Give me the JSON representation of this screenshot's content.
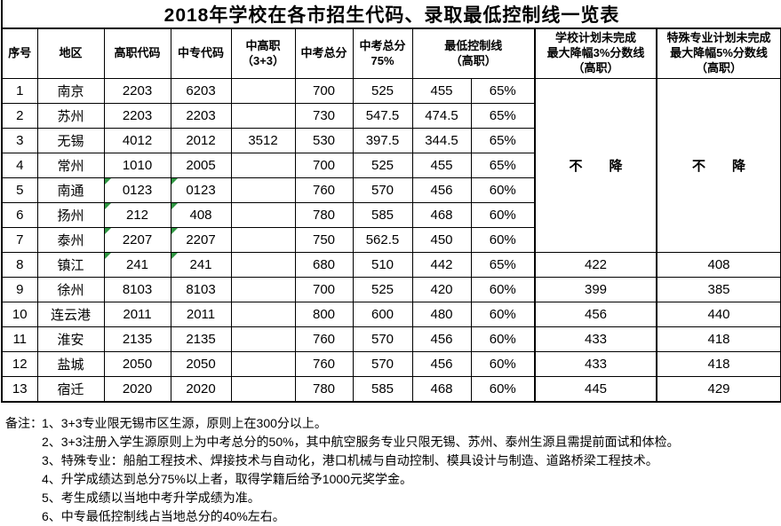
{
  "title": "2018年学校在各市招生代码、录取最低控制线一览表",
  "table": {
    "headers": {
      "no": "序号",
      "region": "地区",
      "gz_code": "高职代码",
      "zz_code": "中专代码",
      "zgz": "中高职\n（3+3）",
      "zk_total": "中考总分",
      "zk_75": "中考总分\n75%",
      "min_line": "最低控制线\n（高职）",
      "school_plan": "学校计划未完成\n最大降幅3%分数线\n（高职）",
      "special_plan": "特殊专业计划未完成\n最大降幅5%分数线\n（高职）"
    },
    "no_drop": "不　　降",
    "rows": [
      {
        "no": "1",
        "region": "南京",
        "gz": "2203",
        "zz": "6203",
        "zgz": "",
        "total": "700",
        "p75": "525",
        "min": "455",
        "pct": "65%",
        "flag": false
      },
      {
        "no": "2",
        "region": "苏州",
        "gz": "2203",
        "zz": "2203",
        "zgz": "",
        "total": "730",
        "p75": "547.5",
        "min": "474.5",
        "pct": "65%",
        "flag": false
      },
      {
        "no": "3",
        "region": "无锡",
        "gz": "4012",
        "zz": "2012",
        "zgz": "3512",
        "total": "530",
        "p75": "397.5",
        "min": "344.5",
        "pct": "65%",
        "flag": false
      },
      {
        "no": "4",
        "region": "常州",
        "gz": "1010",
        "zz": "2005",
        "zgz": "",
        "total": "700",
        "p75": "525",
        "min": "455",
        "pct": "65%",
        "flag": false
      },
      {
        "no": "5",
        "region": "南通",
        "gz": "0123",
        "zz": "0123",
        "zgz": "",
        "total": "760",
        "p75": "570",
        "min": "456",
        "pct": "60%",
        "flag": true
      },
      {
        "no": "6",
        "region": "扬州",
        "gz": "212",
        "zz": "408",
        "zgz": "",
        "total": "780",
        "p75": "585",
        "min": "468",
        "pct": "60%",
        "flag": true
      },
      {
        "no": "7",
        "region": "泰州",
        "gz": "2207",
        "zz": "2207",
        "zgz": "",
        "total": "750",
        "p75": "562.5",
        "min": "450",
        "pct": "60%",
        "flag": true
      },
      {
        "no": "8",
        "region": "镇江",
        "gz": "241",
        "zz": "241",
        "zgz": "",
        "total": "680",
        "p75": "510",
        "min": "442",
        "pct": "65%",
        "flag": true,
        "school": "422",
        "special": "408"
      },
      {
        "no": "9",
        "region": "徐州",
        "gz": "8103",
        "zz": "8103",
        "zgz": "",
        "total": "700",
        "p75": "525",
        "min": "420",
        "pct": "60%",
        "flag": false,
        "school": "399",
        "special": "385"
      },
      {
        "no": "10",
        "region": "连云港",
        "gz": "2011",
        "zz": "2011",
        "zgz": "",
        "total": "800",
        "p75": "600",
        "min": "480",
        "pct": "60%",
        "flag": false,
        "school": "456",
        "special": "440"
      },
      {
        "no": "11",
        "region": "淮安",
        "gz": "2135",
        "zz": "2135",
        "zgz": "",
        "total": "760",
        "p75": "570",
        "min": "456",
        "pct": "60%",
        "flag": false,
        "school": "433",
        "special": "418"
      },
      {
        "no": "12",
        "region": "盐城",
        "gz": "2050",
        "zz": "2050",
        "zgz": "",
        "total": "760",
        "p75": "570",
        "min": "456",
        "pct": "60%",
        "flag": false,
        "school": "433",
        "special": "418"
      },
      {
        "no": "13",
        "region": "宿迁",
        "gz": "2020",
        "zz": "2020",
        "zgz": "",
        "total": "780",
        "p75": "585",
        "min": "468",
        "pct": "60%",
        "flag": false,
        "school": "445",
        "special": "429"
      }
    ]
  },
  "notes": {
    "label": "备注：",
    "items": [
      "1、3+3专业限无锡市区生源，原则上在300分以上。",
      "2、3+3注册入学生源原则上为中考总分的50%，其中航空服务专业只限无锡、苏州、泰州生源且需提前面试和体检。",
      "3、特殊专业：船舶工程技术、焊接技术与自动化，港口机械与自动控制、模具设计与制造、道路桥梁工程技术。",
      "4、升学成绩达到总分75%以上者，取得学籍后给予1000元奖学金。",
      "5、考生成绩以当地中考升学成绩为准。",
      "6、中专最低控制线占当地总分的40%左右。"
    ]
  },
  "colors": {
    "flag_green": "#2f9642",
    "border": "#000000",
    "background": "#ffffff"
  }
}
